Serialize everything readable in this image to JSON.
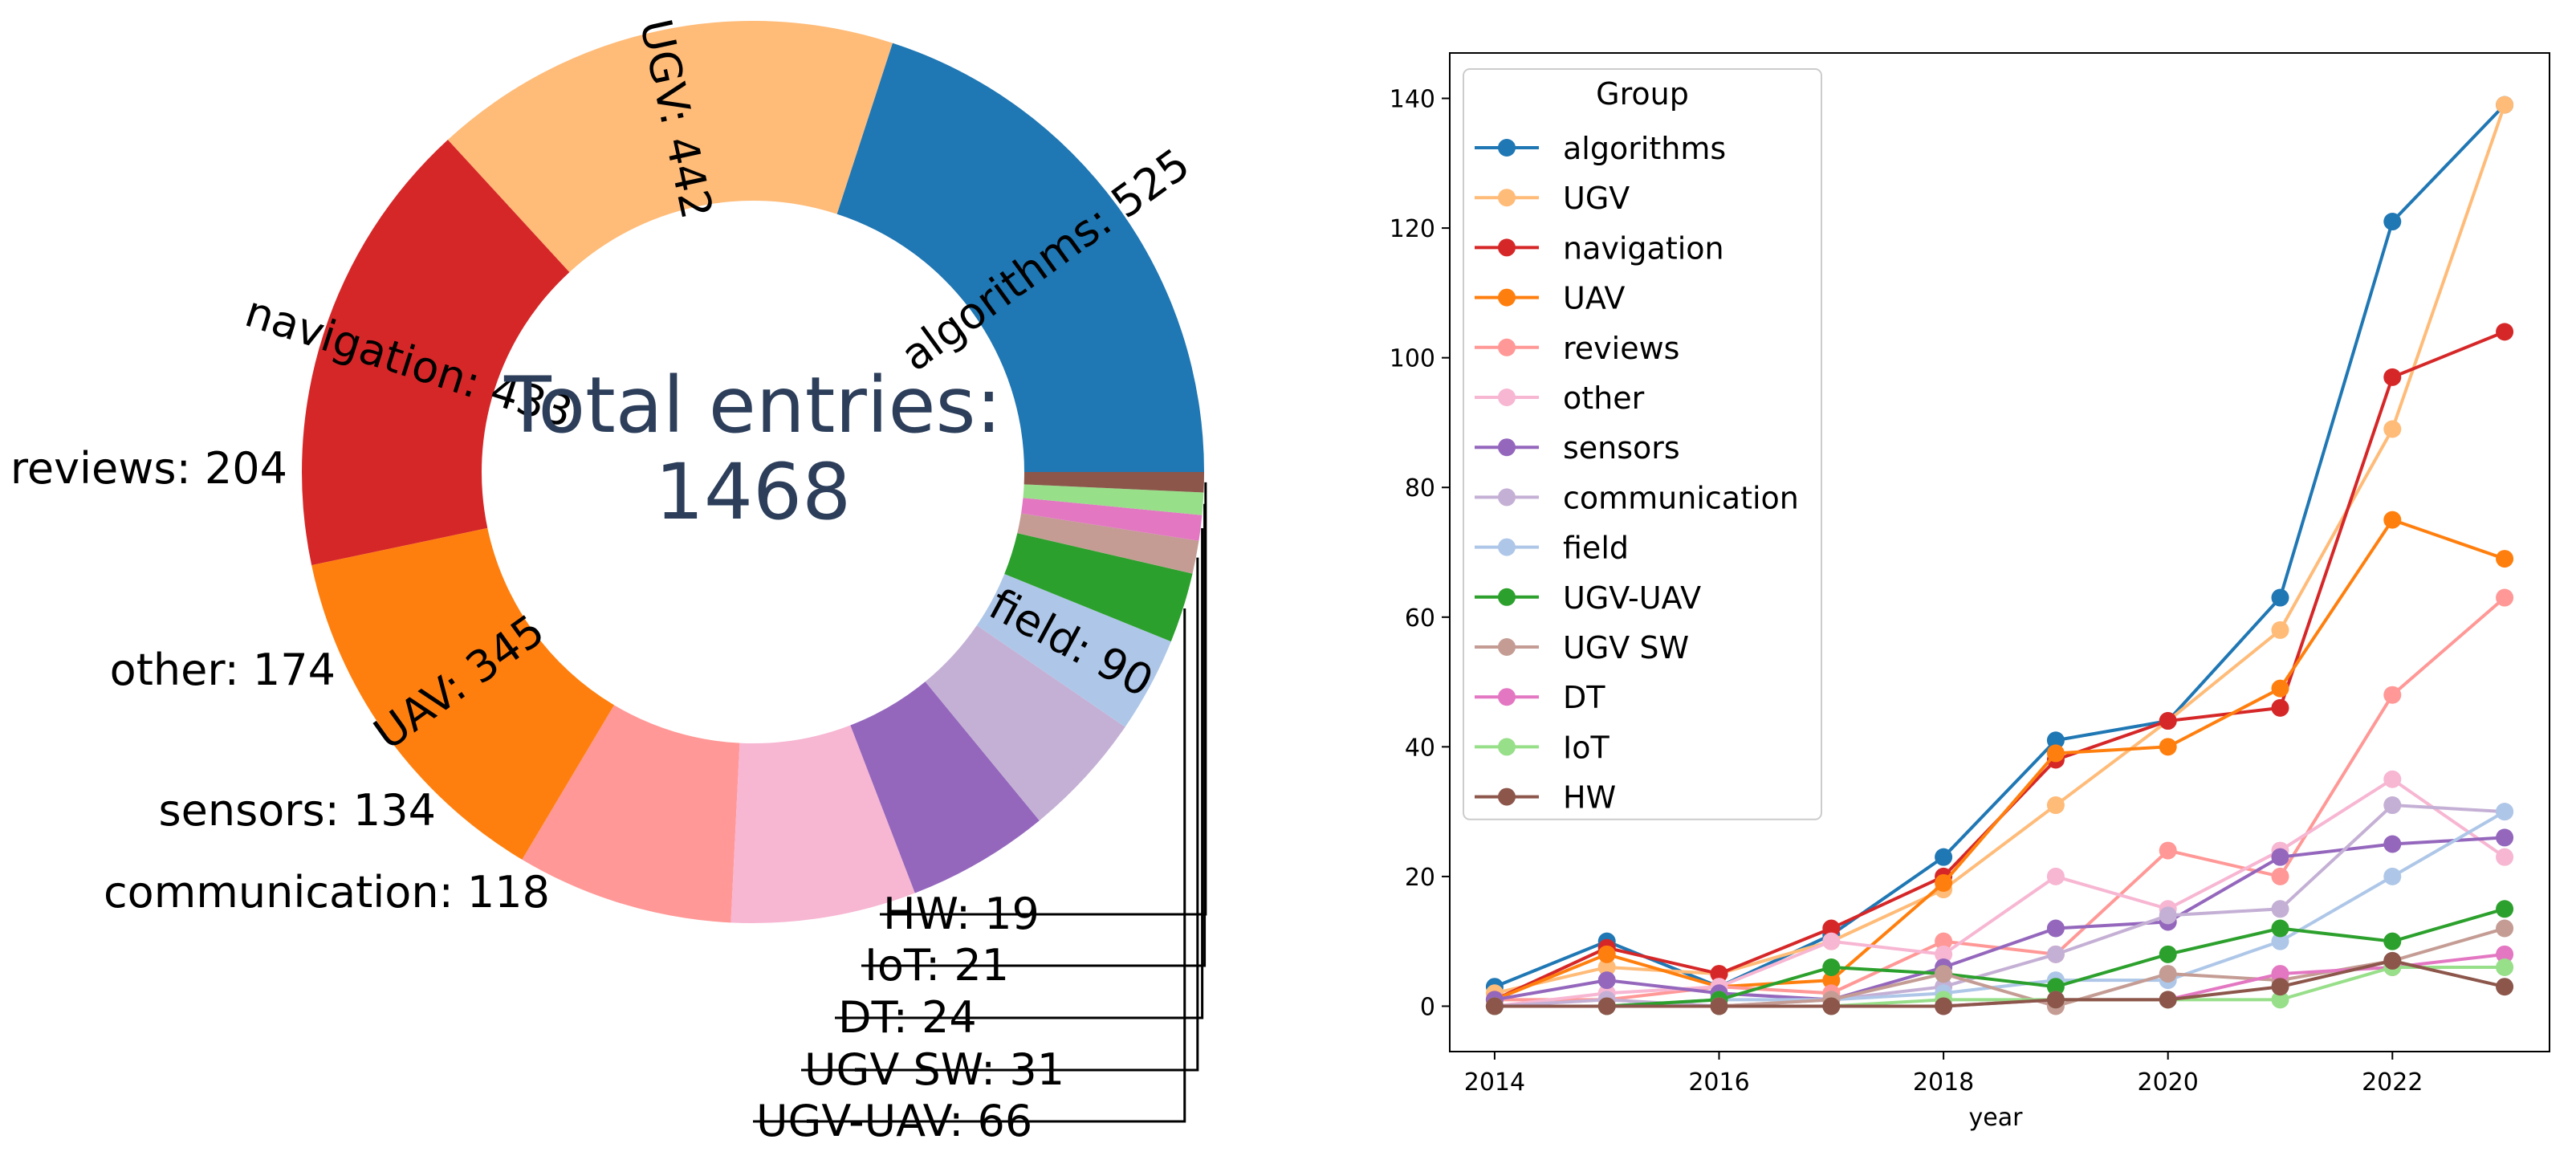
{
  "chart_data": [
    {
      "type": "pie",
      "style": "donut",
      "center_label": {
        "line1": "Total entries:",
        "line2": "1468"
      },
      "slices": [
        {
          "label": "algorithms",
          "value": 525,
          "color": "#1f77b4"
        },
        {
          "label": "UGV",
          "value": 442,
          "color": "#ffbb78"
        },
        {
          "label": "navigation",
          "value": 433,
          "color": "#d62728"
        },
        {
          "label": "UAV",
          "value": 345,
          "color": "#ff7f0e"
        },
        {
          "label": "reviews",
          "value": 204,
          "color": "#ff9896"
        },
        {
          "label": "other",
          "value": 174,
          "color": "#f7b6d2"
        },
        {
          "label": "sensors",
          "value": 134,
          "color": "#9467bd"
        },
        {
          "label": "communication",
          "value": 118,
          "color": "#c5b0d5"
        },
        {
          "label": "field",
          "value": 90,
          "color": "#aec7e8"
        },
        {
          "label": "UGV-UAV",
          "value": 66,
          "color": "#2ca02c"
        },
        {
          "label": "UGV SW",
          "value": 31,
          "color": "#c49c94"
        },
        {
          "label": "DT",
          "value": 24,
          "color": "#e377c2"
        },
        {
          "label": "IoT",
          "value": 21,
          "color": "#98df8a"
        },
        {
          "label": "HW",
          "value": 19,
          "color": "#8c564b"
        }
      ],
      "slice_labels": {
        "algorithms": "algorithms: 525",
        "UGV": "UGV: 442",
        "navigation": "navigation: 433",
        "UAV": "UAV: 345",
        "reviews": "reviews: 204",
        "other": "other: 174",
        "sensors": "sensors: 134",
        "communication": "communication: 118",
        "field": "field: 90",
        "UGV-UAV": "UGV-UAV: 66",
        "UGV SW": "UGV SW: 31",
        "DT": "DT: 24",
        "IoT": "IoT: 21",
        "HW": "HW: 19"
      }
    },
    {
      "type": "line",
      "title": "",
      "xlabel": "year",
      "ylabel": "",
      "xlim": [
        2013.6,
        2023.4
      ],
      "ylim": [
        -7,
        147
      ],
      "x_ticks": [
        2014,
        2016,
        2018,
        2020,
        2022
      ],
      "y_ticks": [
        0,
        20,
        40,
        60,
        80,
        100,
        120,
        140
      ],
      "legend_title": "Group",
      "legend_position": "upper left",
      "x": [
        2014,
        2015,
        2016,
        2017,
        2018,
        2019,
        2020,
        2021,
        2022,
        2023
      ],
      "series": [
        {
          "name": "algorithms",
          "color": "#1f77b4",
          "values": [
            3,
            10,
            3,
            11,
            23,
            41,
            44,
            63,
            121,
            139
          ]
        },
        {
          "name": "UGV",
          "color": "#ffbb78",
          "values": [
            2,
            6,
            5,
            10,
            18,
            31,
            44,
            58,
            89,
            139
          ]
        },
        {
          "name": "navigation",
          "color": "#d62728",
          "values": [
            1,
            9,
            5,
            12,
            20,
            38,
            44,
            46,
            97,
            104
          ]
        },
        {
          "name": "UAV",
          "color": "#ff7f0e",
          "values": [
            1,
            8,
            3,
            4,
            19,
            39,
            40,
            49,
            75,
            69
          ]
        },
        {
          "name": "reviews",
          "color": "#ff9896",
          "values": [
            1,
            1,
            3,
            2,
            10,
            8,
            24,
            20,
            48,
            63
          ]
        },
        {
          "name": "other",
          "color": "#f7b6d2",
          "values": [
            0,
            2,
            3,
            10,
            8,
            20,
            15,
            24,
            35,
            23
          ]
        },
        {
          "name": "sensors",
          "color": "#9467bd",
          "values": [
            1,
            4,
            2,
            1,
            6,
            12,
            13,
            23,
            25,
            26
          ]
        },
        {
          "name": "communication",
          "color": "#c5b0d5",
          "values": [
            0,
            1,
            0,
            1,
            3,
            8,
            14,
            15,
            31,
            30
          ]
        },
        {
          "name": "field",
          "color": "#aec7e8",
          "values": [
            0,
            0,
            1,
            1,
            2,
            4,
            4,
            10,
            20,
            30
          ]
        },
        {
          "name": "UGV-UAV",
          "color": "#2ca02c",
          "values": [
            0,
            0,
            1,
            6,
            5,
            3,
            8,
            12,
            10,
            15
          ]
        },
        {
          "name": "UGV SW",
          "color": "#c49c94",
          "values": [
            0,
            0,
            0,
            1,
            5,
            0,
            5,
            4,
            7,
            12
          ]
        },
        {
          "name": "DT",
          "color": "#e377c2",
          "values": [
            0,
            0,
            0,
            0,
            0,
            1,
            1,
            5,
            6,
            8
          ]
        },
        {
          "name": "IoT",
          "color": "#98df8a",
          "values": [
            0,
            0,
            0,
            0,
            1,
            1,
            1,
            1,
            6,
            6
          ]
        },
        {
          "name": "HW",
          "color": "#8c564b",
          "values": [
            0,
            0,
            0,
            0,
            0,
            1,
            1,
            3,
            7,
            3
          ]
        }
      ]
    }
  ]
}
